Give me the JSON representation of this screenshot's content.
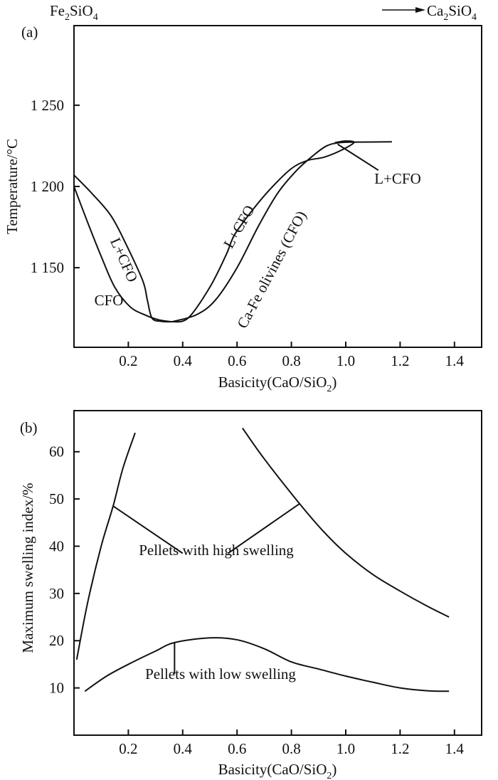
{
  "chart_data": [
    {
      "panel": "(a)",
      "type": "line",
      "title": "",
      "corner_left": "Fe2SiO4",
      "corner_right": "Ca2SiO4",
      "xlabel": "Basicity(CaO/SiO2)",
      "ylabel": "Temperature/°C",
      "xlim": [
        0,
        1.5
      ],
      "ylim": [
        1101,
        1299
      ],
      "xticks": [
        0.2,
        0.4,
        0.6,
        0.8,
        1.0,
        1.2,
        1.4
      ],
      "xtick_labels": [
        "0.2",
        "0.4",
        "0.6",
        "0.8",
        "1.0",
        "1.2",
        "1.4"
      ],
      "yticks": [
        1250,
        1200,
        1150
      ],
      "ytick_labels": [
        "1 250",
        "1 200",
        "1 150"
      ],
      "grid": false,
      "series": [
        {
          "name": "liquidus-left",
          "x": [
            0,
            0.07,
            0.136,
            0.19,
            0.253,
            0.27,
            0.287,
            0.32,
            0.36
          ],
          "y": [
            1207,
            1195,
            1182,
            1165,
            1142,
            1130,
            1119,
            1117,
            1116.7
          ]
        },
        {
          "name": "solidus-left",
          "x": [
            0,
            0.05,
            0.1,
            0.15,
            0.206,
            0.26,
            0.31,
            0.36
          ],
          "y": [
            1200,
            1178,
            1157,
            1138,
            1126,
            1121,
            1118,
            1116.7
          ]
        },
        {
          "name": "liquidus-right",
          "x": [
            0.36,
            0.42,
            0.5,
            0.56,
            0.59,
            0.65,
            0.72,
            0.8,
            0.86,
            0.92,
            0.98,
            1.03,
            1.0,
            0.96
          ],
          "y": [
            1116.7,
            1119,
            1138,
            1158,
            1170,
            1184,
            1198,
            1211,
            1216,
            1218,
            1222,
            1227,
            1228,
            1227
          ]
        },
        {
          "name": "solidus-right",
          "x": [
            0.36,
            0.45,
            0.52,
            0.6,
            0.68,
            0.75,
            0.82,
            0.88,
            0.93,
            0.98,
            1.05,
            1.17
          ],
          "y": [
            1116.7,
            1121,
            1130,
            1150,
            1176,
            1196,
            1210,
            1219,
            1225,
            1227,
            1227.3,
            1227.5
          ]
        }
      ],
      "leaders": [
        {
          "x": [
            0.97,
            1.12
          ],
          "y": [
            1226,
            1210
          ]
        }
      ],
      "annotations": [
        "L+CFO",
        "L+CFO",
        "CFO",
        "Ca-Fe olivines (CFO)",
        "L+CFO"
      ]
    },
    {
      "panel": "(b)",
      "type": "line",
      "title": "",
      "xlabel": "Basicity(CaO/SiO2)",
      "ylabel": "Maximum swelling index/%",
      "xlim": [
        0,
        1.5
      ],
      "ylim": [
        0,
        68.7
      ],
      "xticks": [
        0.2,
        0.4,
        0.6,
        0.8,
        1.0,
        1.2,
        1.4
      ],
      "xtick_labels": [
        "0.2",
        "0.4",
        "0.6",
        "0.8",
        "1.0",
        "1.2",
        "1.4"
      ],
      "yticks": [
        60,
        50,
        40,
        30,
        20,
        10
      ],
      "ytick_labels": [
        "60",
        "50",
        "40",
        "30",
        "20",
        "10"
      ],
      "grid": false,
      "series": [
        {
          "name": "high-swelling-left",
          "x": [
            0.01,
            0.05,
            0.1,
            0.144,
            0.18,
            0.225
          ],
          "y": [
            16,
            28,
            40,
            48.5,
            56.5,
            64
          ]
        },
        {
          "name": "high-swelling-right",
          "x": [
            0.62,
            0.7,
            0.83,
            0.92,
            1.0,
            1.1,
            1.2,
            1.3,
            1.38
          ],
          "y": [
            65,
            58.5,
            49,
            43,
            38.5,
            34,
            30.5,
            27.3,
            25
          ]
        },
        {
          "name": "low-swelling",
          "x": [
            0.04,
            0.12,
            0.2,
            0.3,
            0.37,
            0.5,
            0.6,
            0.7,
            0.8,
            0.9,
            1.0,
            1.1,
            1.2,
            1.3,
            1.38
          ],
          "y": [
            9.3,
            12.5,
            15,
            17.8,
            19.6,
            20.6,
            20.2,
            18.3,
            15.5,
            14,
            12.5,
            11.2,
            10,
            9.4,
            9.3
          ]
        }
      ],
      "leaders": [
        {
          "x": [
            0.144,
            0.4
          ],
          "y": [
            48.5,
            38.5
          ]
        },
        {
          "x": [
            0.83,
            0.567
          ],
          "y": [
            49,
            38.5
          ]
        },
        {
          "x": [
            0.37,
            0.37
          ],
          "y": [
            19.6,
            13
          ]
        }
      ],
      "annotations": [
        "Pellets with high swelling",
        "Pellets with low swelling"
      ]
    }
  ]
}
